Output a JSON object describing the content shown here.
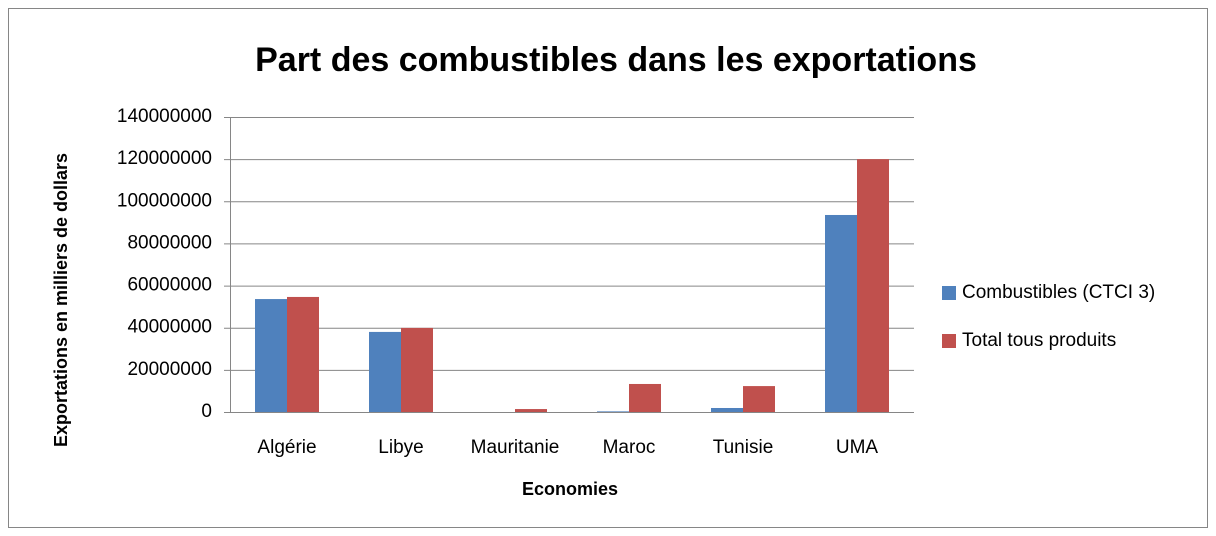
{
  "chart_data": {
    "type": "bar",
    "title": "Part des combustibles dans les exportations",
    "x_label": "Economies",
    "y_label": "Exportations en milliers de dollars",
    "categories": [
      "Algérie",
      "Libye",
      "Mauritanie",
      "Maroc",
      "Tunisie",
      "UMA"
    ],
    "series": [
      {
        "name": "Combustibles (CTCI 3)",
        "color": "#4f81bd",
        "values": [
          53600000,
          38000000,
          0,
          300000,
          1900000,
          93500000
        ]
      },
      {
        "name": "Total tous produits",
        "color": "#c0504d",
        "values": [
          54600000,
          39900000,
          1400000,
          13300000,
          12300000,
          120000000
        ]
      }
    ],
    "ylim": [
      0,
      140000000
    ],
    "yticks": [
      0,
      20000000,
      40000000,
      60000000,
      80000000,
      100000000,
      120000000,
      140000000
    ],
    "grid": true,
    "legend": "right"
  }
}
